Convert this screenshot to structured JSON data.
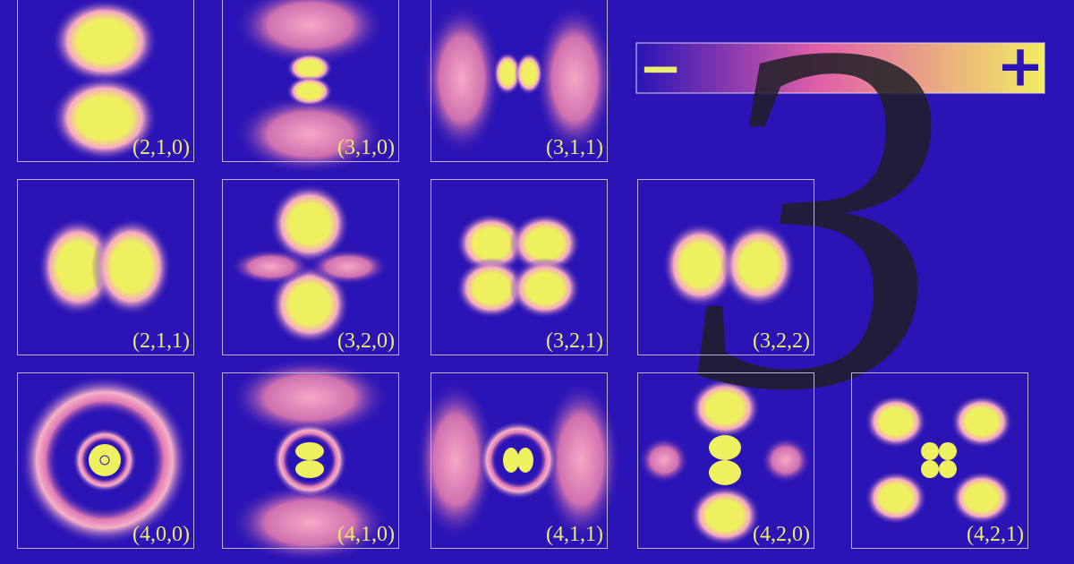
{
  "panels": [
    {
      "label": "(2,1,0)"
    },
    {
      "label": "(3,1,0)"
    },
    {
      "label": "(3,1,1)"
    },
    {
      "label": "(2,1,1)"
    },
    {
      "label": "(3,2,0)"
    },
    {
      "label": "(3,2,1)"
    },
    {
      "label": "(3,2,2)"
    },
    {
      "label": "(4,0,0)"
    },
    {
      "label": "(4,1,0)"
    },
    {
      "label": "(4,1,1)"
    },
    {
      "label": "(4,2,0)"
    },
    {
      "label": "(4,2,1)"
    }
  ],
  "colorbar": {
    "min_label": "−",
    "max_label": "+"
  },
  "numeral": "3"
}
